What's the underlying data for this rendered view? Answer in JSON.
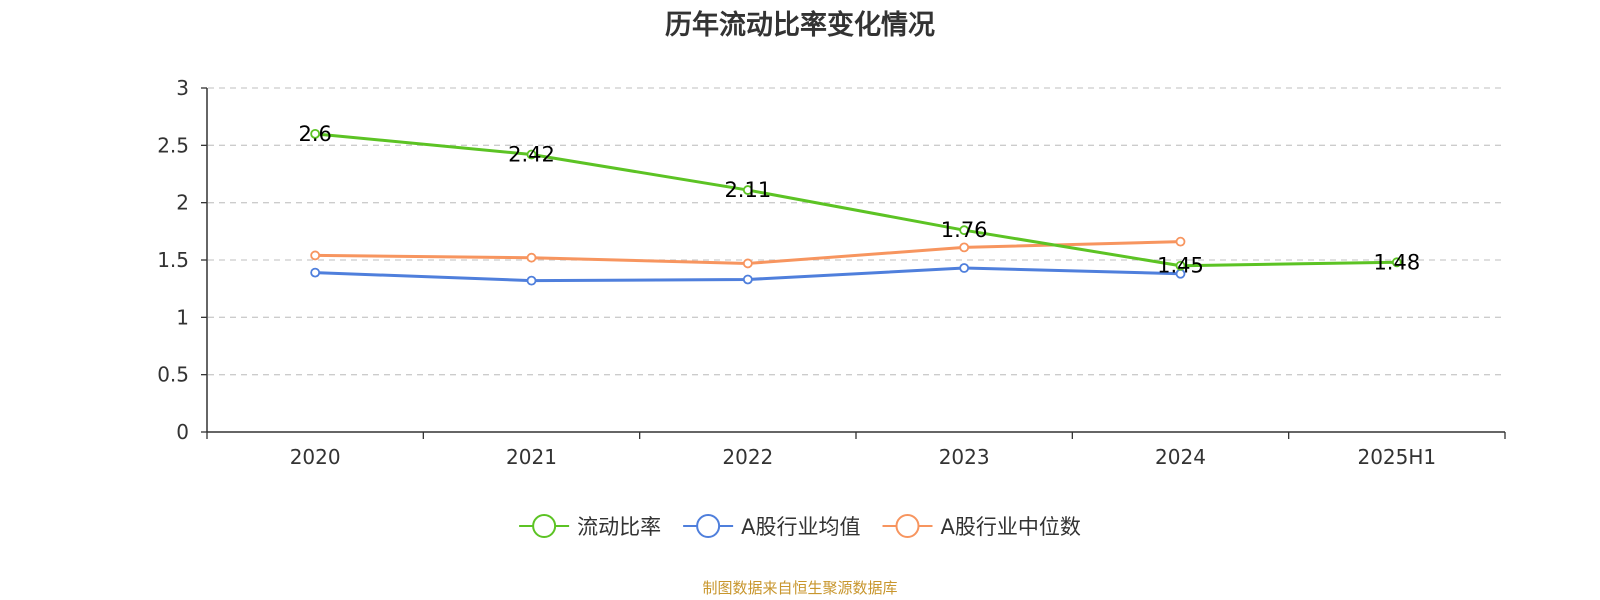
{
  "chart_data": {
    "type": "line",
    "title": "历年流动比率变化情况",
    "categories": [
      "2020",
      "2021",
      "2022",
      "2023",
      "2024",
      "2025H1"
    ],
    "ylim": [
      0,
      3
    ],
    "y_ticks": [
      "0",
      "0.5",
      "1",
      "1.5",
      "2",
      "2.5",
      "3"
    ],
    "grid": true,
    "legend_position": "bottom",
    "series": [
      {
        "name": "流动比率",
        "color": "#5cc324",
        "values": [
          2.6,
          2.42,
          2.11,
          1.76,
          1.45,
          1.48
        ],
        "data_labels": [
          "2.6",
          "2.42",
          "2.11",
          "1.76",
          "1.45",
          "1.48"
        ]
      },
      {
        "name": "A股行业均值",
        "color": "#4f7fdc",
        "values": [
          1.39,
          1.32,
          1.33,
          1.43,
          1.38,
          null
        ]
      },
      {
        "name": "A股行业中位数",
        "color": "#f7955f",
        "values": [
          1.54,
          1.52,
          1.47,
          1.61,
          1.66,
          null
        ]
      }
    ],
    "source": "制图数据来自恒生聚源数据库",
    "source_color": "#c8962d"
  }
}
